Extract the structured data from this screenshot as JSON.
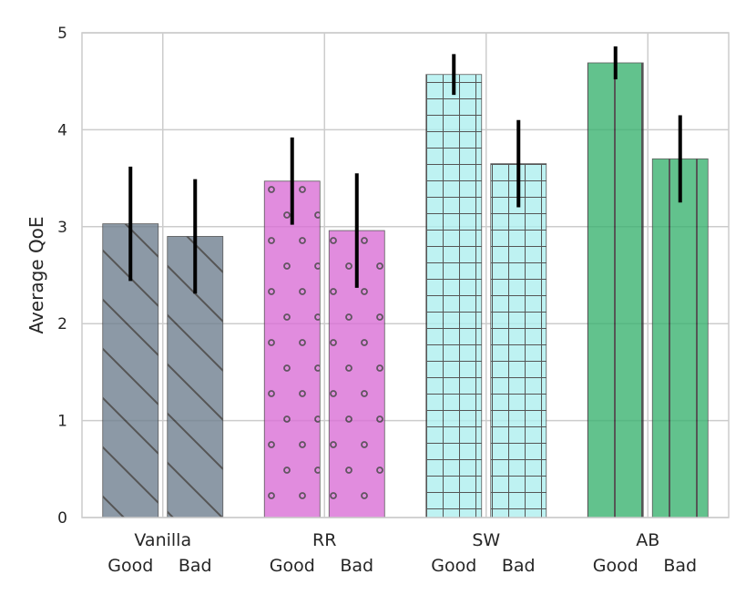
{
  "chart_data": {
    "type": "bar",
    "title": "",
    "xlabel": "",
    "ylabel": "Average QoE",
    "ylim": [
      0,
      5
    ],
    "yticks": [
      "0",
      "1",
      "2",
      "3",
      "4",
      "5"
    ],
    "grid": true,
    "groups": [
      {
        "name": "Vanilla",
        "color": "#708090",
        "pattern": "diagonal-lines",
        "bars": [
          {
            "label": "Good",
            "value": 3.03,
            "err_low": 2.44,
            "err_high": 3.62
          },
          {
            "label": "Bad",
            "value": 2.9,
            "err_low": 2.31,
            "err_high": 3.49
          }
        ]
      },
      {
        "name": "RR",
        "color": "#da70d6",
        "pattern": "circles",
        "bars": [
          {
            "label": "Good",
            "value": 3.47,
            "err_low": 3.02,
            "err_high": 3.92
          },
          {
            "label": "Bad",
            "value": 2.96,
            "err_low": 2.37,
            "err_high": 3.55
          }
        ]
      },
      {
        "name": "SW",
        "color": "#aff0f0",
        "pattern": "grid",
        "bars": [
          {
            "label": "Good",
            "value": 4.57,
            "err_low": 4.36,
            "err_high": 4.78
          },
          {
            "label": "Bad",
            "value": 3.65,
            "err_low": 3.2,
            "err_high": 4.1
          }
        ]
      },
      {
        "name": "AB",
        "color": "#3cb371",
        "pattern": "vertical-lines",
        "bars": [
          {
            "label": "Good",
            "value": 4.69,
            "err_low": 4.52,
            "err_high": 4.86
          },
          {
            "label": "Bad",
            "value": 3.7,
            "err_low": 3.25,
            "err_high": 4.15
          }
        ]
      }
    ]
  }
}
